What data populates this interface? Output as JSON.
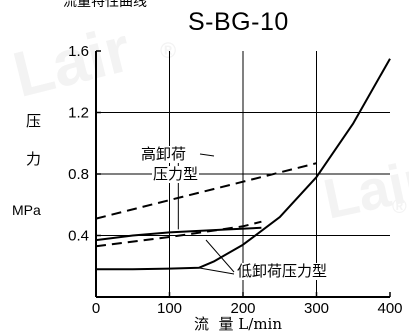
{
  "header": {
    "caption": "流量特性曲线",
    "title": "S-BG-10"
  },
  "axes": {
    "ylabel_chars": [
      "压",
      "力"
    ],
    "yunit": "MPa",
    "xlabel": "流  量 L/min"
  },
  "annotations": {
    "high_line1": "高卸荷",
    "high_line2": "压力型",
    "low": "低卸荷压力型"
  },
  "watermarks": [
    "Lair",
    "®",
    "®",
    "Lair"
  ],
  "colors": {
    "line": "#000000",
    "grid": "#000000",
    "background": "#ffffff"
  },
  "chart_data": {
    "type": "line",
    "title": "S-BG-10",
    "xlabel": "流 量 L/min",
    "ylabel": "压力 MPa",
    "xlim": [
      0,
      400
    ],
    "ylim": [
      0,
      1.6
    ],
    "xticks": [
      "0",
      "100",
      "200",
      "300",
      "400"
    ],
    "yticks": [
      "0.4",
      "0.8",
      "1.2",
      "1.6"
    ],
    "grid": true,
    "series": [
      {
        "name": "高卸荷压力型",
        "style": "dashed",
        "x": [
          0,
          100,
          200,
          300
        ],
        "y": [
          0.51,
          0.63,
          0.75,
          0.87
        ]
      },
      {
        "name": "低卸荷压力型",
        "style": "dashed",
        "x": [
          0,
          100,
          200,
          225
        ],
        "y": [
          0.33,
          0.39,
          0.46,
          0.49
        ]
      },
      {
        "name": "",
        "style": "solid",
        "x": [
          0,
          50,
          100,
          140,
          180,
          225
        ],
        "y": [
          0.37,
          0.4,
          0.42,
          0.43,
          0.44,
          0.45
        ]
      },
      {
        "name": "",
        "style": "solid",
        "x": [
          0,
          50,
          100,
          140,
          160,
          200,
          250,
          300,
          350,
          400
        ],
        "y": [
          0.18,
          0.18,
          0.185,
          0.19,
          0.23,
          0.34,
          0.52,
          0.78,
          1.13,
          1.55
        ]
      }
    ]
  }
}
